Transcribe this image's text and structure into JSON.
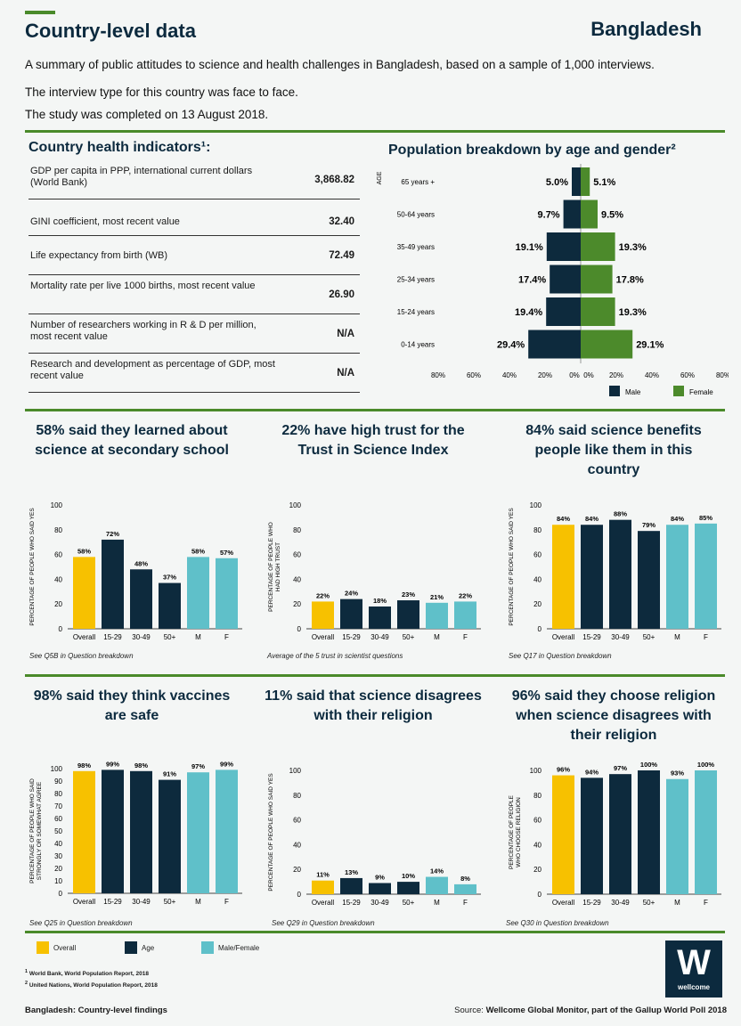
{
  "header": {
    "title": "Country-level data",
    "country": "Bangladesh",
    "intro1": "A summary of public attitudes to science and health challenges in Bangladesh, based on a sample of 1,000 interviews.",
    "intro2": "The interview type for this country was face to face.",
    "intro3": "The study was completed on 13 August 2018."
  },
  "indicators": {
    "title": "Country health indicators¹:",
    "rows": [
      {
        "label": "GDP per capita in PPP, international current dollars (World Bank)",
        "value": "3,868.82"
      },
      {
        "label": "GINI coefficient, most recent value",
        "value": "32.40"
      },
      {
        "label": "Life expectancy from birth (WB)",
        "value": "72.49"
      },
      {
        "label": "Mortality rate per live 1000 births, most recent value",
        "value": "26.90"
      },
      {
        "label": "Number of researchers working in R & D per million, most recent value",
        "value": "N/A"
      },
      {
        "label": "Research and development as percentage of GDP, most recent value",
        "value": "N/A"
      }
    ]
  },
  "pyramid": {
    "title": "Population breakdown by age and gender²",
    "axis_label": "AGE",
    "legend_male": "Male",
    "legend_female": "Female",
    "male_color": "#0d2a3d",
    "female_color": "#4c8a2b"
  },
  "legend": {
    "overall": "Overall",
    "age": "Age",
    "mf": "Male/Female",
    "colors": {
      "overall": "#f7c100",
      "age": "#0d2a3d",
      "mf": "#5fc0c9"
    }
  },
  "footnotes": {
    "fn1": "World Bank, World Population Report, 2018",
    "fn2": "United Nations, World Population Report, 2018",
    "left": "Bangladesh: Country-level findings",
    "right_prefix": "Source: ",
    "right": "Wellcome Global Monitor, part of the Gallup World Poll 2018"
  },
  "logo": {
    "letter": "W",
    "text": "wellcome"
  },
  "chart_data": [
    {
      "type": "bar",
      "title": "Population breakdown by age and gender²",
      "orientation": "horizontal-pyramid",
      "categories": [
        "65 years +",
        "50-64 years",
        "35-49 years",
        "25-34 years",
        "15-24 years",
        "0-14 years"
      ],
      "series": [
        {
          "name": "Male",
          "values": [
            5.0,
            9.7,
            19.1,
            17.4,
            19.4,
            29.4
          ]
        },
        {
          "name": "Female",
          "values": [
            5.1,
            9.5,
            19.3,
            17.8,
            19.3,
            29.1
          ]
        }
      ],
      "xlim": [
        -80,
        80
      ],
      "xticks": [
        "80%",
        "60%",
        "40%",
        "20%",
        "0%",
        "0%",
        "20%",
        "40%",
        "60%",
        "80%"
      ],
      "labels_male": [
        "5.0%",
        "9.7%",
        "19.1%",
        "17.4%",
        "19.4%",
        "29.4%"
      ],
      "labels_female": [
        "5.1%",
        "9.5%",
        "19.3%",
        "17.8%",
        "19.3%",
        "29.1%"
      ]
    },
    {
      "type": "bar",
      "title": "58% said they learned about science at secondary school",
      "ylabel": "PERCENTAGE OF PEOPLE WHO SAID YES",
      "ylim": [
        0,
        100
      ],
      "yticks": [
        0,
        20,
        40,
        60,
        80,
        100
      ],
      "categories": [
        "Overall",
        "15-29",
        "30-49",
        "50+",
        "M",
        "F"
      ],
      "values": [
        58,
        72,
        48,
        37,
        58,
        57
      ],
      "labels": [
        "58%",
        "72%",
        "48%",
        "37%",
        "58%",
        "57%"
      ],
      "note": "See Q5B in Question breakdown"
    },
    {
      "type": "bar",
      "title": "22% have high trust for the Trust in Science Index",
      "ylabel": "PERCENTAGE OF PEOPLE WHO HAD HIGH TRUST",
      "ylim": [
        0,
        100
      ],
      "yticks": [
        0,
        20,
        40,
        60,
        80,
        100
      ],
      "categories": [
        "Overall",
        "15-29",
        "30-49",
        "50+",
        "M",
        "F"
      ],
      "values": [
        22,
        24,
        18,
        23,
        21,
        22
      ],
      "labels": [
        "22%",
        "24%",
        "18%",
        "23%",
        "21%",
        "22%"
      ],
      "note": "Average of the 5 trust in scientist questions"
    },
    {
      "type": "bar",
      "title": "84% said science benefits people like them in this country",
      "ylabel": "PERCENTAGE OF PEOPLE WHO SAID YES",
      "ylim": [
        0,
        100
      ],
      "yticks": [
        0,
        20,
        40,
        60,
        80,
        100
      ],
      "categories": [
        "Overall",
        "15-29",
        "30-49",
        "50+",
        "M",
        "F"
      ],
      "values": [
        84,
        84,
        88,
        79,
        84,
        85
      ],
      "labels": [
        "84%",
        "84%",
        "88%",
        "79%",
        "84%",
        "85%"
      ],
      "note": "See Q17 in Question breakdown"
    },
    {
      "type": "bar",
      "title": "98% said they think vaccines are safe",
      "ylabel": "PERCENTAGE OF PEOPLE WHO SAID STRONGLY OR SOMEWHAT AGREE",
      "ylim": [
        0,
        100
      ],
      "yticks": [
        0,
        10,
        20,
        30,
        40,
        50,
        60,
        70,
        80,
        90,
        100
      ],
      "categories": [
        "Overall",
        "15-29",
        "30-49",
        "50+",
        "M",
        "F"
      ],
      "values": [
        98,
        99,
        98,
        91,
        97,
        99
      ],
      "labels": [
        "98%",
        "99%",
        "98%",
        "91%",
        "97%",
        "99%"
      ],
      "note": "See Q25 in Question breakdown"
    },
    {
      "type": "bar",
      "title": "11% said that science disagrees with their religion",
      "ylabel": "PERCENTAGE OF PEOPLE WHO SAID YES",
      "ylim": [
        0,
        100
      ],
      "yticks": [
        0,
        20,
        40,
        60,
        80,
        100
      ],
      "categories": [
        "Overall",
        "15-29",
        "30-49",
        "50+",
        "M",
        "F"
      ],
      "values": [
        11,
        13,
        9,
        10,
        14,
        8
      ],
      "labels": [
        "11%",
        "13%",
        "9%",
        "10%",
        "14%",
        "8%"
      ],
      "note": "See Q29 in Question breakdown"
    },
    {
      "type": "bar",
      "title": "96% said they choose religion when science disagrees with their religion",
      "ylabel": "PERCENTAGE OF PEOPLE WHO CHOOSE RELIGION",
      "ylim": [
        0,
        100
      ],
      "yticks": [
        0,
        20,
        40,
        60,
        80,
        100
      ],
      "categories": [
        "Overall",
        "15-29",
        "30-49",
        "50+",
        "M",
        "F"
      ],
      "values": [
        96,
        94,
        97,
        100,
        93,
        100
      ],
      "labels": [
        "96%",
        "94%",
        "97%",
        "100%",
        "93%",
        "100%"
      ],
      "note": "See Q30 in Question breakdown"
    }
  ]
}
